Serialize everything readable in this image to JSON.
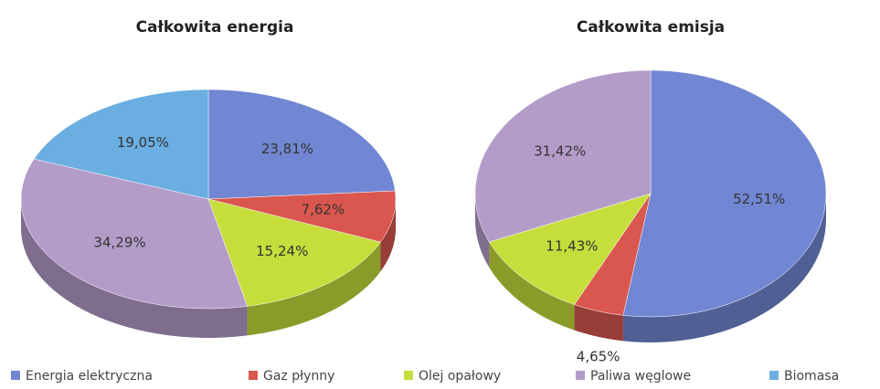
{
  "chart_data": [
    {
      "type": "pie",
      "title": "Całkowita energia",
      "categories": [
        "Energia elektryczna",
        "Gaz płynny",
        "Olej opałowy",
        "Paliwa węglowe",
        "Biomasa"
      ],
      "values": [
        23.81,
        7.62,
        15.24,
        34.29,
        19.05
      ],
      "value_labels": [
        "23,81%",
        "7,62%",
        "15,24%",
        "34,29%",
        "19,05%"
      ],
      "colors": [
        "#7287d3",
        "#d9574e",
        "#c6de3c",
        "#b49cc9",
        "#6aaee2"
      ]
    },
    {
      "type": "pie",
      "title": "Całkowita emisja",
      "categories": [
        "Energia elektryczna",
        "Gaz płynny",
        "Olej opałowy",
        "Paliwa węglowe"
      ],
      "values": [
        52.51,
        4.65,
        11.43,
        31.42
      ],
      "value_labels": [
        "52,51%",
        "4,65%",
        "11,43%",
        "31,42%"
      ],
      "colors": [
        "#7287d3",
        "#d9574e",
        "#c6de3c",
        "#b49cc9"
      ]
    }
  ]
}
